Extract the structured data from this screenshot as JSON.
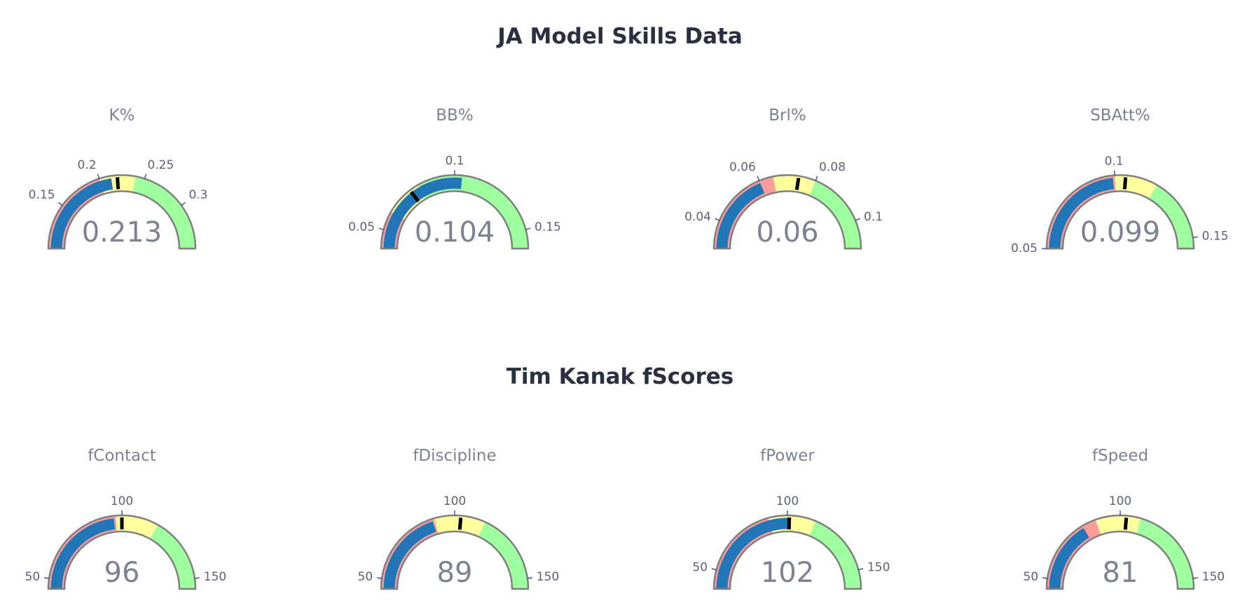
{
  "section_titles": {
    "top": "JA Model Skills Data",
    "bottom": "Tim Kanak fScores"
  },
  "colors": {
    "band_low": "#ff9d9d",
    "band_mid": "#ffff9d",
    "band_high": "#9dff9d",
    "bar": "#2176b8",
    "threshold": "#000000",
    "outline": "#7f7f7f"
  },
  "chart_data": [
    {
      "type": "gauge",
      "title": "K%",
      "value": 0.213,
      "value_label": "0.213",
      "range": [
        0.1,
        0.35
      ],
      "steps": [
        {
          "range": [
            0.1,
            0.2
          ],
          "color": "low"
        },
        {
          "range": [
            0.2,
            0.24
          ],
          "color": "mid"
        },
        {
          "range": [
            0.24,
            0.35
          ],
          "color": "high"
        }
      ],
      "threshold": 0.22,
      "ticks": [
        {
          "value": 0.15,
          "label": "0.15"
        },
        {
          "value": 0.2,
          "label": "0.2"
        },
        {
          "value": 0.25,
          "label": "0.25"
        },
        {
          "value": 0.3,
          "label": "0.3"
        }
      ]
    },
    {
      "type": "gauge",
      "title": "BB%",
      "value": 0.104,
      "value_label": "0.104",
      "range": [
        0.04,
        0.16
      ],
      "steps": [
        {
          "range": [
            0.04,
            0.06
          ],
          "color": "low"
        },
        {
          "range": [
            0.06,
            0.08
          ],
          "color": "mid"
        },
        {
          "range": [
            0.08,
            0.16
          ],
          "color": "high"
        }
      ],
      "threshold": 0.075,
      "ticks": [
        {
          "value": 0.05,
          "label": "0.05"
        },
        {
          "value": 0.1,
          "label": "0.1"
        },
        {
          "value": 0.15,
          "label": "0.15"
        }
      ]
    },
    {
      "type": "gauge",
      "title": "Brl%",
      "value": 0.06,
      "value_label": "0.06",
      "range": [
        0.03,
        0.11
      ],
      "steps": [
        {
          "range": [
            0.03,
            0.065
          ],
          "color": "low"
        },
        {
          "range": [
            0.065,
            0.08
          ],
          "color": "mid"
        },
        {
          "range": [
            0.08,
            0.11
          ],
          "color": "high"
        }
      ],
      "threshold": 0.074,
      "ticks": [
        {
          "value": 0.04,
          "label": "0.04"
        },
        {
          "value": 0.06,
          "label": "0.06"
        },
        {
          "value": 0.08,
          "label": "0.08"
        },
        {
          "value": 0.1,
          "label": "0.1"
        }
      ]
    },
    {
      "type": "gauge",
      "title": "SBAtt%",
      "value": 0.099,
      "value_label": "0.099",
      "range": [
        0.05,
        0.155
      ],
      "steps": [
        {
          "range": [
            0.05,
            0.1
          ],
          "color": "low"
        },
        {
          "range": [
            0.1,
            0.12
          ],
          "color": "mid"
        },
        {
          "range": [
            0.12,
            0.155
          ],
          "color": "high"
        }
      ],
      "threshold": 0.105,
      "ticks": [
        {
          "value": 0.05,
          "label": "0.05"
        },
        {
          "value": 0.1,
          "label": "0.1"
        },
        {
          "value": 0.15,
          "label": "0.15"
        }
      ]
    },
    {
      "type": "gauge",
      "title": "fContact",
      "value": 96,
      "value_label": "96",
      "range": [
        45,
        155
      ],
      "steps": [
        {
          "range": [
            45,
            97
          ],
          "color": "low"
        },
        {
          "range": [
            97,
            118
          ],
          "color": "mid"
        },
        {
          "range": [
            118,
            155
          ],
          "color": "high"
        }
      ],
      "threshold": 100,
      "ticks": [
        {
          "value": 50,
          "label": "50"
        },
        {
          "value": 100,
          "label": "100"
        },
        {
          "value": 150,
          "label": "150"
        }
      ]
    },
    {
      "type": "gauge",
      "title": "fDiscipline",
      "value": 89,
      "value_label": "89",
      "range": [
        45,
        155
      ],
      "steps": [
        {
          "range": [
            45,
            90
          ],
          "color": "low"
        },
        {
          "range": [
            90,
            115
          ],
          "color": "mid"
        },
        {
          "range": [
            115,
            155
          ],
          "color": "high"
        }
      ],
      "threshold": 103,
      "ticks": [
        {
          "value": 50,
          "label": "50"
        },
        {
          "value": 100,
          "label": "100"
        },
        {
          "value": 150,
          "label": "150"
        }
      ]
    },
    {
      "type": "gauge",
      "title": "fPower",
      "value": 102,
      "value_label": "102",
      "range": [
        40,
        160
      ],
      "steps": [
        {
          "range": [
            40,
            90
          ],
          "color": "low"
        },
        {
          "range": [
            90,
            115
          ],
          "color": "mid"
        },
        {
          "range": [
            115,
            160
          ],
          "color": "high"
        }
      ],
      "threshold": 101,
      "ticks": [
        {
          "value": 50,
          "label": "50"
        },
        {
          "value": 100,
          "label": "100"
        },
        {
          "value": 150,
          "label": "150"
        }
      ]
    },
    {
      "type": "gauge",
      "title": "fSpeed",
      "value": 81,
      "value_label": "81",
      "range": [
        45,
        155
      ],
      "steps": [
        {
          "range": [
            45,
            88
          ],
          "color": "low"
        },
        {
          "range": [
            88,
            110
          ],
          "color": "mid"
        },
        {
          "range": [
            110,
            155
          ],
          "color": "high"
        }
      ],
      "threshold": 103,
      "ticks": [
        {
          "value": 50,
          "label": "50"
        },
        {
          "value": 100,
          "label": "100"
        },
        {
          "value": 150,
          "label": "150"
        }
      ]
    }
  ]
}
